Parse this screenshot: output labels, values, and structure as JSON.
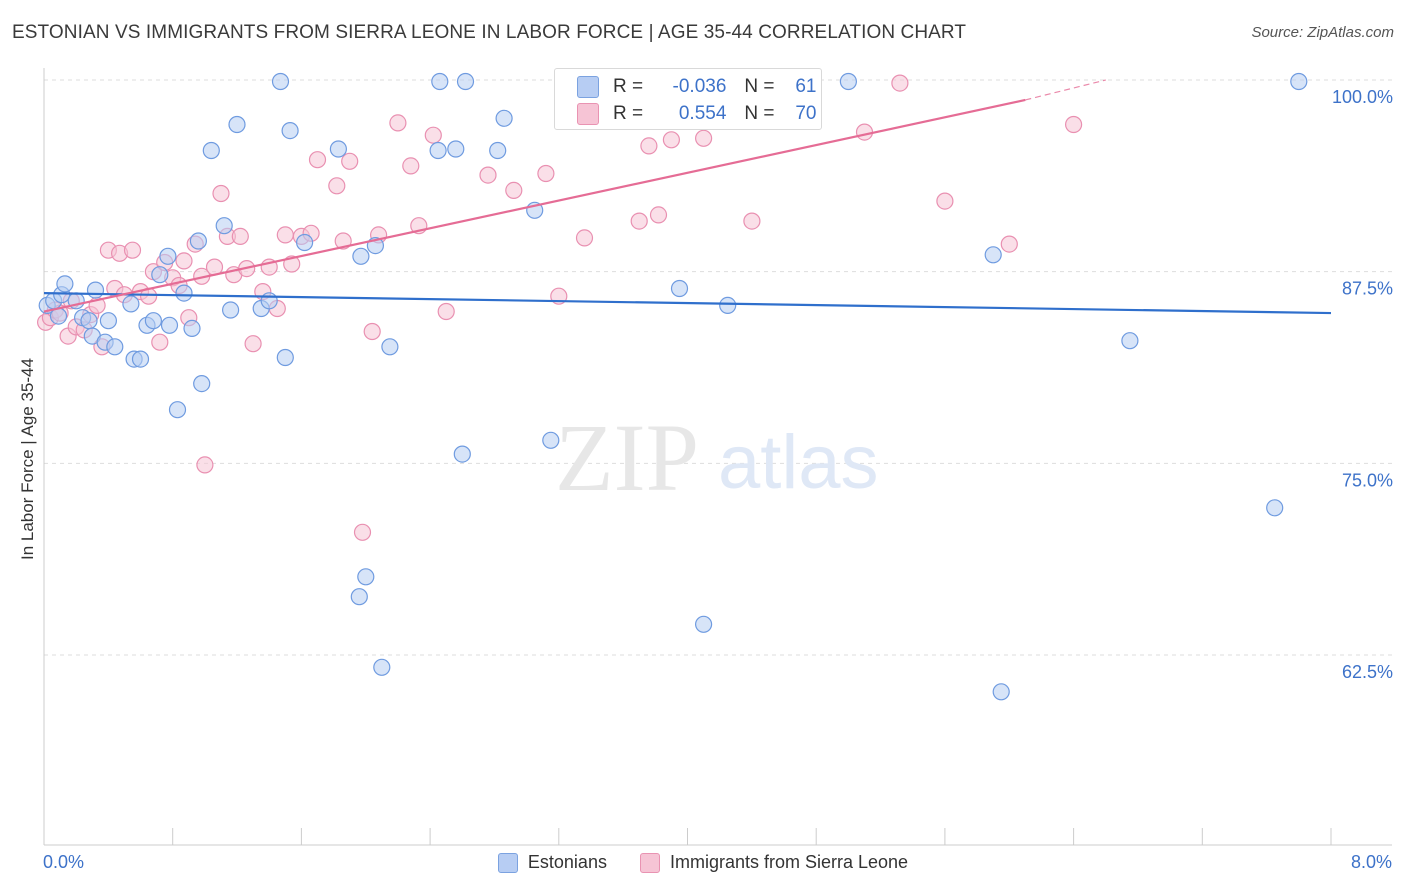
{
  "title": "ESTONIAN VS IMMIGRANTS FROM SIERRA LEONE IN LABOR FORCE | AGE 35-44 CORRELATION CHART",
  "source": "Source: ZipAtlas.com",
  "watermark": {
    "zip": "ZIP",
    "atlas": "atlas"
  },
  "colors": {
    "blue": "#6f9be0",
    "blue_fill": "#b7cdf3",
    "pink": "#e990b1",
    "pink_fill": "#f6c4d5",
    "blue_line": "#2f6fcc",
    "pink_line": "#e56c95",
    "axis_text": "#3d72c9"
  },
  "stats": {
    "r_label": "R =",
    "n_label": "N =",
    "blue": {
      "r": "-0.036",
      "n": "61"
    },
    "pink": {
      "r": "0.554",
      "n": "70"
    }
  },
  "legend": {
    "blue": "Estonians",
    "pink": "Immigrants from Sierra Leone"
  },
  "chart_data": {
    "type": "scatter",
    "title": "ESTONIAN VS IMMIGRANTS FROM SIERRA LEONE IN LABOR FORCE | AGE 35-44 CORRELATION CHART",
    "xlabel": "",
    "ylabel": "In Labor Force | Age 35-44",
    "xlim": [
      0,
      8
    ],
    "ylim": [
      50,
      101
    ],
    "x_tick_labels": {
      "min": "0.0%",
      "max": "8.0%"
    },
    "y_ticks": [
      {
        "value": 100,
        "label": "100.0%"
      },
      {
        "value": 87.5,
        "label": "87.5%"
      },
      {
        "value": 75,
        "label": "75.0%"
      },
      {
        "value": 62.5,
        "label": "62.5%"
      }
    ],
    "series": [
      {
        "name": "Estonians",
        "color": "blue",
        "trend": {
          "x0": 0.0,
          "y0": 86.1,
          "x1": 8.0,
          "y1": 84.8
        },
        "points": [
          [
            0.02,
            85.3
          ],
          [
            0.06,
            85.6
          ],
          [
            0.09,
            84.6
          ],
          [
            0.11,
            86.0
          ],
          [
            0.13,
            86.7
          ],
          [
            0.2,
            85.6
          ],
          [
            0.24,
            84.5
          ],
          [
            0.28,
            84.3
          ],
          [
            0.3,
            83.3
          ],
          [
            0.32,
            86.3
          ],
          [
            0.38,
            82.9
          ],
          [
            0.4,
            84.3
          ],
          [
            0.44,
            82.6
          ],
          [
            0.54,
            85.4
          ],
          [
            0.56,
            81.8
          ],
          [
            0.6,
            81.8
          ],
          [
            0.64,
            84.0
          ],
          [
            0.68,
            84.3
          ],
          [
            0.72,
            87.3
          ],
          [
            0.77,
            88.5
          ],
          [
            0.78,
            84.0
          ],
          [
            0.83,
            78.5
          ],
          [
            0.87,
            86.1
          ],
          [
            0.92,
            83.8
          ],
          [
            0.96,
            89.5
          ],
          [
            0.98,
            80.2
          ],
          [
            1.04,
            95.4
          ],
          [
            1.12,
            90.5
          ],
          [
            1.16,
            85.0
          ],
          [
            1.2,
            97.1
          ],
          [
            1.35,
            85.1
          ],
          [
            1.4,
            85.6
          ],
          [
            1.47,
            99.9
          ],
          [
            1.5,
            81.9
          ],
          [
            1.53,
            96.7
          ],
          [
            1.62,
            89.4
          ],
          [
            1.83,
            95.5
          ],
          [
            1.96,
            66.3
          ],
          [
            1.97,
            88.5
          ],
          [
            2.0,
            67.6
          ],
          [
            2.06,
            89.2
          ],
          [
            2.1,
            61.7
          ],
          [
            2.15,
            82.6
          ],
          [
            2.45,
            95.4
          ],
          [
            2.46,
            99.9
          ],
          [
            2.56,
            95.5
          ],
          [
            2.6,
            75.6
          ],
          [
            2.62,
            99.9
          ],
          [
            2.82,
            95.4
          ],
          [
            2.86,
            97.5
          ],
          [
            3.05,
            91.5
          ],
          [
            3.15,
            76.5
          ],
          [
            3.95,
            86.4
          ],
          [
            4.1,
            64.5
          ],
          [
            4.25,
            85.3
          ],
          [
            5.0,
            99.9
          ],
          [
            5.9,
            88.6
          ],
          [
            5.95,
            60.1
          ],
          [
            6.75,
            83.0
          ],
          [
            7.65,
            72.1
          ],
          [
            7.8,
            99.9
          ]
        ]
      },
      {
        "name": "Immigrants from Sierra Leone",
        "color": "pink",
        "trend": {
          "x0": 0.0,
          "y0": 84.9,
          "x1": 6.1,
          "y1": 98.7,
          "dash_to": {
            "x": 6.6,
            "y": 100.0
          }
        },
        "points": [
          [
            0.01,
            84.2
          ],
          [
            0.04,
            84.5
          ],
          [
            0.07,
            85.0
          ],
          [
            0.1,
            84.8
          ],
          [
            0.15,
            83.3
          ],
          [
            0.17,
            85.6
          ],
          [
            0.2,
            83.9
          ],
          [
            0.25,
            83.7
          ],
          [
            0.29,
            84.7
          ],
          [
            0.33,
            85.3
          ],
          [
            0.36,
            82.6
          ],
          [
            0.4,
            88.9
          ],
          [
            0.44,
            86.4
          ],
          [
            0.47,
            88.7
          ],
          [
            0.5,
            86.0
          ],
          [
            0.55,
            88.9
          ],
          [
            0.6,
            86.2
          ],
          [
            0.65,
            85.9
          ],
          [
            0.68,
            87.5
          ],
          [
            0.72,
            82.9
          ],
          [
            0.75,
            88.1
          ],
          [
            0.8,
            87.1
          ],
          [
            0.84,
            86.6
          ],
          [
            0.87,
            88.2
          ],
          [
            0.9,
            84.5
          ],
          [
            0.94,
            89.3
          ],
          [
            0.98,
            87.2
          ],
          [
            1.0,
            74.9
          ],
          [
            1.06,
            87.8
          ],
          [
            1.1,
            92.6
          ],
          [
            1.14,
            89.8
          ],
          [
            1.18,
            87.3
          ],
          [
            1.22,
            89.8
          ],
          [
            1.26,
            87.7
          ],
          [
            1.3,
            82.8
          ],
          [
            1.36,
            86.2
          ],
          [
            1.4,
            87.8
          ],
          [
            1.45,
            85.1
          ],
          [
            1.5,
            89.9
          ],
          [
            1.54,
            88.0
          ],
          [
            1.6,
            89.8
          ],
          [
            1.66,
            90.0
          ],
          [
            1.7,
            94.8
          ],
          [
            1.82,
            93.1
          ],
          [
            1.86,
            89.5
          ],
          [
            1.9,
            94.7
          ],
          [
            1.98,
            70.5
          ],
          [
            2.04,
            83.6
          ],
          [
            2.08,
            89.9
          ],
          [
            2.2,
            97.2
          ],
          [
            2.28,
            94.4
          ],
          [
            2.33,
            90.5
          ],
          [
            2.42,
            96.4
          ],
          [
            2.5,
            84.9
          ],
          [
            2.76,
            93.8
          ],
          [
            2.92,
            92.8
          ],
          [
            3.12,
            93.9
          ],
          [
            3.2,
            85.9
          ],
          [
            3.36,
            89.7
          ],
          [
            3.7,
            90.8
          ],
          [
            3.76,
            95.7
          ],
          [
            3.82,
            91.2
          ],
          [
            3.9,
            96.1
          ],
          [
            4.1,
            96.2
          ],
          [
            4.4,
            90.8
          ],
          [
            5.1,
            96.6
          ],
          [
            5.32,
            99.8
          ],
          [
            5.6,
            92.1
          ],
          [
            6.0,
            89.3
          ],
          [
            6.4,
            97.1
          ]
        ]
      }
    ]
  }
}
